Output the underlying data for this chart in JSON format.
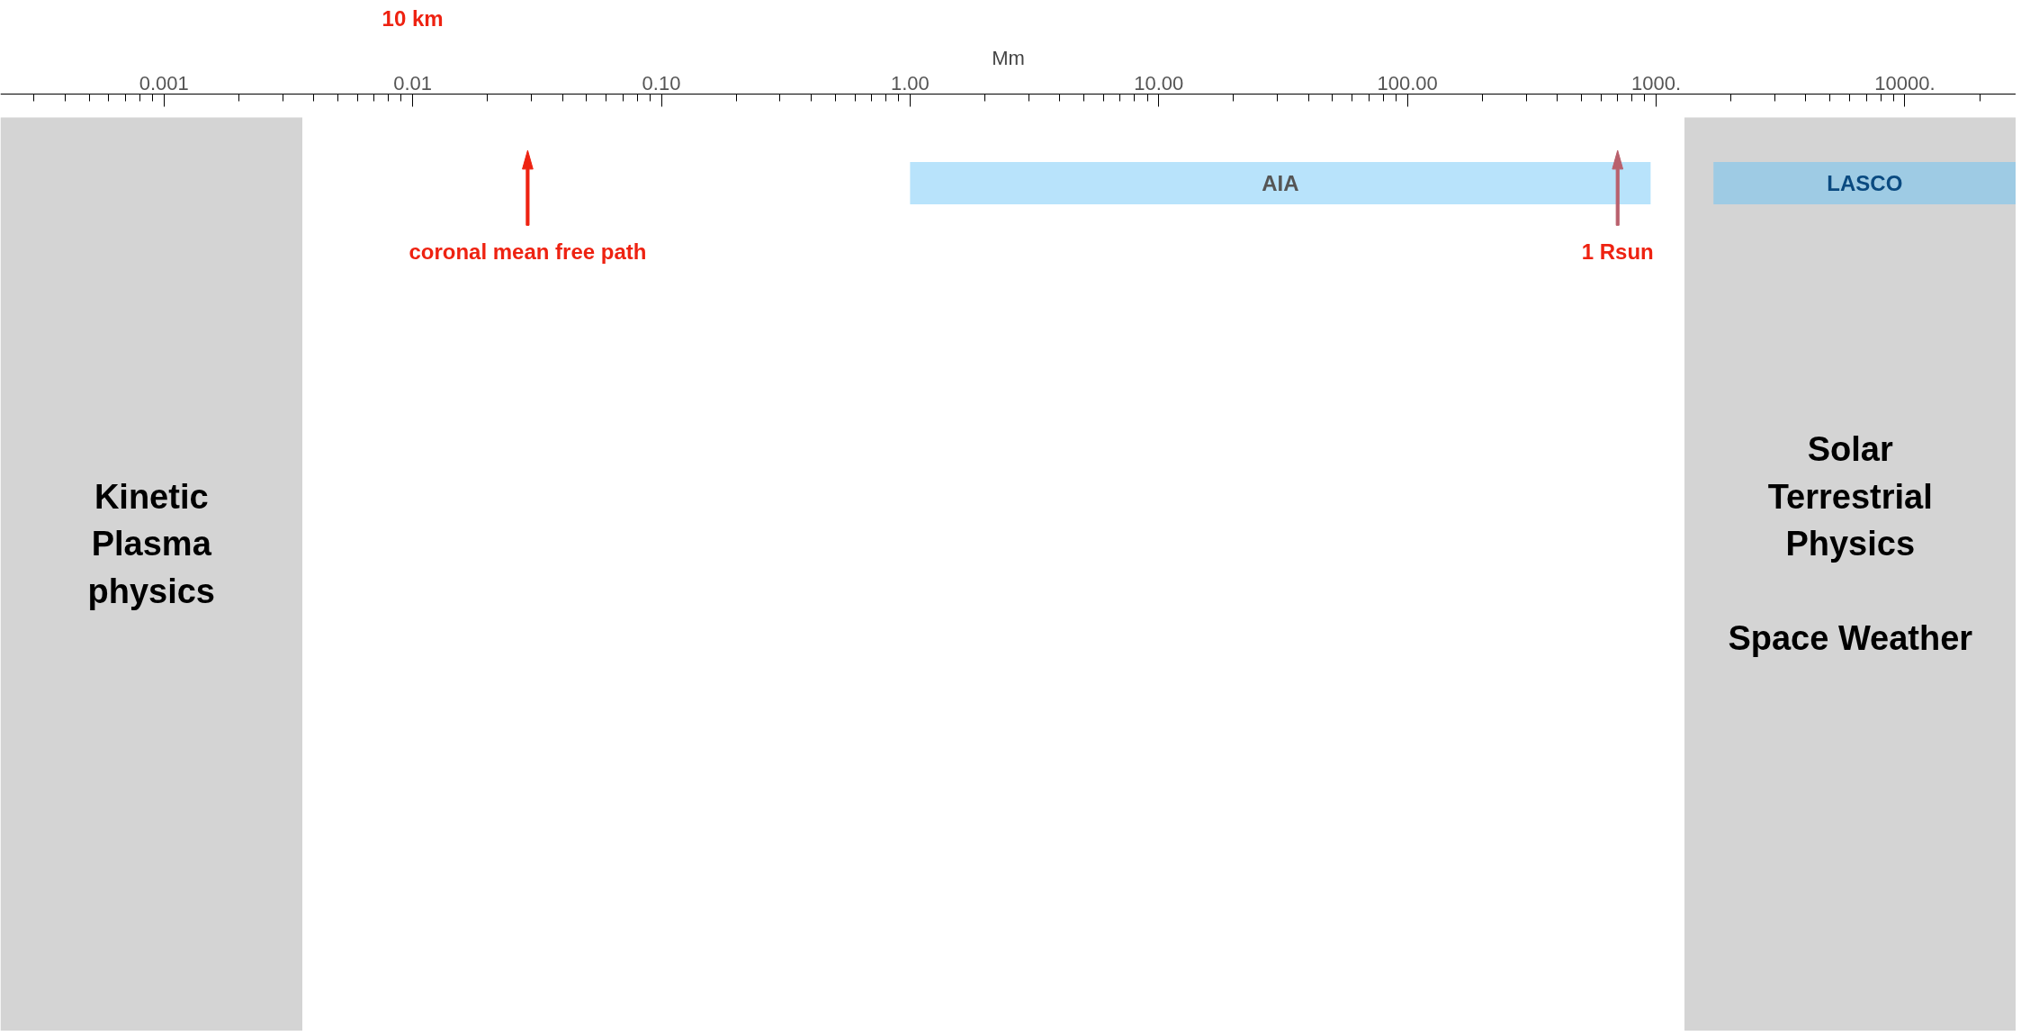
{
  "chart_data": {
    "type": "bar",
    "orientation": "horizontal",
    "log": "x",
    "tick_labels": "x",
    "xlabel": "Mm",
    "categories": [
      null
    ],
    "series": [
      {
        "name": "AIA",
        "color": "#b8e3fb",
        "values": [
          949
        ],
        "base": [
          1
        ]
      },
      {
        "name": "LASCO",
        "color": "#9ecbe4",
        "values": [
          26300
        ],
        "base": [
          1700
        ]
      }
    ],
    "xlim": [
      0.00022,
      28000
    ],
    "xticks": [
      {
        "value": 0.001,
        "label": "0.001"
      },
      {
        "value": 0.01,
        "label": "0.01"
      },
      {
        "value": 0.1,
        "label": "0.10"
      },
      {
        "value": 1,
        "label": "1.00"
      },
      {
        "value": 10,
        "label": "10.00"
      },
      {
        "value": 100,
        "label": "100.00"
      },
      {
        "value": 1000,
        "label": "1000."
      },
      {
        "value": 10000,
        "label": "10000."
      }
    ],
    "bands": [
      {
        "axis": "x",
        "from": 0.00022,
        "to": 0.0036,
        "label": "Kinetic\nPlasma\nphysics",
        "color": "#d4d4d4"
      },
      {
        "axis": "x",
        "from": 1300,
        "to": 28000,
        "label": "Solar\nTerrestrial\nPhysics\n\nSpace Weather",
        "color": "#d4d4d4"
      }
    ],
    "ref_lines": [
      {
        "axis": "x",
        "value": 0.029,
        "label": "coronal mean free path",
        "color": "#ee2211"
      },
      {
        "axis": "x",
        "value": 700,
        "label": "1 Rsun",
        "color": "#b9606c"
      }
    ],
    "annotations": [
      "10 km"
    ],
    "grid": false
  }
}
